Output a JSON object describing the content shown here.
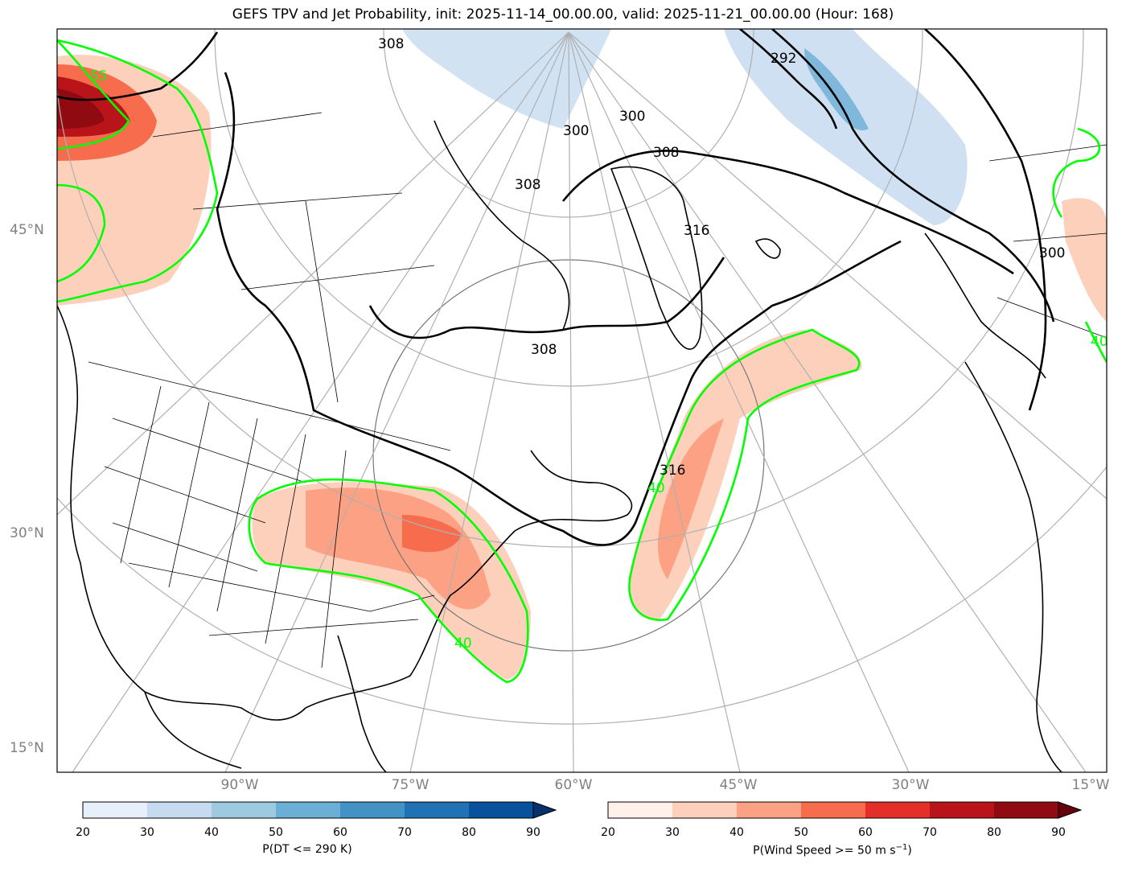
{
  "title": "GEFS TPV and Jet Probability, init: 2025-11-14_00.00.00, valid: 2025-11-21_00.00.00 (Hour: 168)",
  "lat_labels": [
    "45°N",
    "30°N",
    "15°N"
  ],
  "lon_labels": [
    "90°W",
    "75°W",
    "60°W",
    "45°W",
    "30°W",
    "15°W"
  ],
  "contour_labels": {
    "theta": [
      "292",
      "300",
      "300",
      "308",
      "308",
      "316",
      "308",
      "308",
      "316",
      "300"
    ],
    "jet": [
      "55",
      "40",
      "40",
      "40"
    ]
  },
  "colorbars": {
    "blue": {
      "label": "P(DT <= 290 K)",
      "ticks": [
        "20",
        "30",
        "40",
        "50",
        "60",
        "70",
        "80",
        "90"
      ],
      "colors": [
        "#e7f0fa",
        "#c6dbef",
        "#9ecae1",
        "#6baed6",
        "#4292c6",
        "#2171b5",
        "#08519c",
        "#08306b"
      ]
    },
    "red": {
      "label_prefix": "P(Wind Speed >= 50 m s",
      "label_sup": "−1",
      "label_suffix": ")",
      "ticks": [
        "20",
        "30",
        "40",
        "50",
        "60",
        "70",
        "80",
        "90"
      ],
      "colors": [
        "#fff0ea",
        "#fdd0bc",
        "#fca183",
        "#f66c4c",
        "#e32f27",
        "#b91419",
        "#900a12",
        "#67000d"
      ]
    }
  },
  "colors": {
    "jet_contour": "#00ff00",
    "theta_contour": "#000000",
    "graticule": "#aaaaaa"
  }
}
